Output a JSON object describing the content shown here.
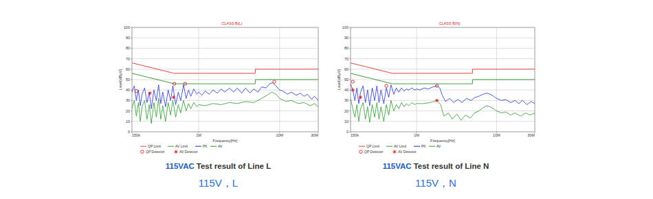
{
  "chart_data": [
    {
      "type": "line",
      "title": "CLASS B(L)",
      "x_label": "Frequency[Hz]",
      "y_label": "Level[dBµV]",
      "log": "x",
      "grid": true,
      "legend": "bottom",
      "xlim": [
        150000,
        30000000
      ],
      "xticks": [
        {
          "value": 150000,
          "label": "150k"
        },
        {
          "value": 1000000,
          "label": "1M"
        },
        {
          "value": 10000000,
          "label": "10M"
        },
        {
          "value": 30000000,
          "label": "30M"
        }
      ],
      "ylim": [
        0,
        100
      ],
      "yticks": [
        0,
        10,
        20,
        30,
        40,
        50,
        60,
        70,
        80,
        90,
        100
      ],
      "series": [
        {
          "name": "QP Limit",
          "color": "#e8463c",
          "type": "line",
          "x": [
            150000,
            500000,
            500000,
            5000000,
            5000000,
            30000000
          ],
          "values": [
            66,
            56,
            56,
            56,
            60,
            60
          ]
        },
        {
          "name": "AV Limit",
          "color": "#3a9e3a",
          "type": "line",
          "x": [
            150000,
            500000,
            500000,
            5000000,
            5000000,
            30000000
          ],
          "values": [
            56,
            46,
            46,
            46,
            50,
            50
          ]
        },
        {
          "name": "PK",
          "color": "#1f2fe0",
          "type": "line",
          "x": [
            150000,
            160000,
            170000,
            180000,
            190000,
            200000,
            215000,
            230000,
            245000,
            260000,
            280000,
            300000,
            320000,
            340000,
            360000,
            390000,
            420000,
            450000,
            480000,
            520000,
            560000,
            600000,
            650000,
            700000,
            750000,
            800000,
            870000,
            950000,
            1000000,
            1100000,
            1200000,
            1350000,
            1500000,
            1700000,
            1900000,
            2100000,
            2400000,
            2700000,
            3000000,
            3400000,
            3800000,
            4300000,
            4800000,
            5400000,
            6000000,
            6800000,
            7500000,
            8200000,
            9000000,
            10000000,
            11000000,
            12500000,
            14000000,
            16000000,
            18000000,
            20000000,
            22000000,
            25000000,
            27000000,
            30000000
          ],
          "values": [
            38,
            44,
            30,
            40,
            25,
            36,
            42,
            28,
            38,
            22,
            40,
            30,
            45,
            27,
            38,
            24,
            40,
            30,
            44,
            26,
            38,
            30,
            45,
            32,
            40,
            34,
            41,
            36,
            38,
            35,
            39,
            36,
            40,
            37,
            41,
            38,
            42,
            38,
            42,
            37,
            42,
            37,
            41,
            38,
            43,
            42,
            46,
            47,
            44,
            40,
            39,
            36,
            38,
            35,
            37,
            34,
            36,
            31,
            34,
            30
          ]
        },
        {
          "name": "AV",
          "color": "#2a9a2a",
          "type": "line",
          "x": [
            150000,
            160000,
            170000,
            180000,
            190000,
            200000,
            215000,
            230000,
            245000,
            260000,
            280000,
            300000,
            320000,
            340000,
            360000,
            390000,
            420000,
            450000,
            480000,
            520000,
            560000,
            600000,
            650000,
            700000,
            750000,
            800000,
            870000,
            950000,
            1000000,
            1200000,
            1500000,
            1900000,
            2400000,
            3000000,
            3800000,
            4800000,
            6000000,
            7000000,
            8000000,
            9000000,
            10000000,
            12000000,
            14000000,
            17000000,
            20000000,
            24000000,
            27000000,
            30000000
          ],
          "values": [
            22,
            30,
            15,
            28,
            10,
            24,
            30,
            12,
            26,
            8,
            28,
            14,
            32,
            12,
            25,
            10,
            28,
            16,
            30,
            14,
            26,
            18,
            30,
            20,
            27,
            22,
            28,
            24,
            26,
            25,
            27,
            26,
            28,
            27,
            29,
            28,
            32,
            35,
            38,
            36,
            32,
            29,
            30,
            27,
            28,
            25,
            27,
            24
          ]
        },
        {
          "name": "QP Detector",
          "color": "#e02020",
          "type": "scatter",
          "marker": "circle",
          "x": [
            170000,
            500000,
            680000,
            8600000
          ],
          "values": [
            39,
            46,
            46,
            48
          ]
        },
        {
          "name": "AV Detector",
          "color": "#e02020",
          "type": "scatter",
          "marker": "star",
          "x": [
            250000,
            490000
          ],
          "values": [
            37,
            33
          ]
        }
      ],
      "caption_highlight": "115VAC",
      "caption": "Test result of Line L",
      "subcaption": "115V，L"
    },
    {
      "type": "line",
      "title": "CLASS B(N)",
      "x_label": "Frequency[Hz]",
      "y_label": "Level[dBµV]",
      "log": "x",
      "grid": true,
      "legend": "bottom",
      "xlim": [
        150000,
        30000000
      ],
      "xticks": [
        {
          "value": 150000,
          "label": "150k"
        },
        {
          "value": 1000000,
          "label": "1M"
        },
        {
          "value": 10000000,
          "label": "10M"
        },
        {
          "value": 30000000,
          "label": "30M"
        }
      ],
      "ylim": [
        0,
        100
      ],
      "yticks": [
        0,
        10,
        20,
        30,
        40,
        50,
        60,
        70,
        80,
        90,
        100
      ],
      "series": [
        {
          "name": "QP Limit",
          "color": "#e8463c",
          "type": "line",
          "x": [
            150000,
            500000,
            500000,
            5000000,
            5000000,
            30000000
          ],
          "values": [
            66,
            56,
            56,
            56,
            60,
            60
          ]
        },
        {
          "name": "AV Limit",
          "color": "#3a9e3a",
          "type": "line",
          "x": [
            150000,
            500000,
            500000,
            5000000,
            5000000,
            30000000
          ],
          "values": [
            56,
            46,
            46,
            46,
            50,
            50
          ]
        },
        {
          "name": "PK",
          "color": "#1f2fe0",
          "type": "line",
          "x": [
            150000,
            160000,
            170000,
            180000,
            190000,
            200000,
            215000,
            230000,
            245000,
            260000,
            280000,
            300000,
            320000,
            340000,
            360000,
            390000,
            420000,
            450000,
            480000,
            520000,
            560000,
            600000,
            650000,
            700000,
            750000,
            800000,
            870000,
            950000,
            1000000,
            1100000,
            1250000,
            1400000,
            1600000,
            1800000,
            1950000,
            2100000,
            2300000,
            2600000,
            2900000,
            3300000,
            3700000,
            4200000,
            4800000,
            5400000,
            6000000,
            6800000,
            7500000,
            8300000,
            9200000,
            10000000,
            11500000,
            13000000,
            15000000,
            17000000,
            19000000,
            21000000,
            24000000,
            27000000,
            30000000
          ],
          "values": [
            46,
            40,
            30,
            42,
            27,
            38,
            44,
            28,
            40,
            25,
            42,
            30,
            44,
            28,
            40,
            27,
            42,
            33,
            45,
            36,
            42,
            38,
            42,
            39,
            41,
            40,
            42,
            40,
            41,
            40,
            42,
            41,
            43,
            44,
            42,
            35,
            29,
            32,
            28,
            31,
            28,
            32,
            30,
            33,
            34,
            36,
            37,
            36,
            34,
            32,
            30,
            31,
            28,
            30,
            27,
            30,
            26,
            29,
            27
          ]
        },
        {
          "name": "AV",
          "color": "#2a9a2a",
          "type": "line",
          "x": [
            150000,
            160000,
            170000,
            180000,
            190000,
            200000,
            215000,
            230000,
            245000,
            260000,
            280000,
            300000,
            320000,
            340000,
            360000,
            390000,
            420000,
            450000,
            480000,
            520000,
            560000,
            600000,
            650000,
            700000,
            750000,
            800000,
            870000,
            950000,
            1000000,
            1200000,
            1500000,
            1800000,
            2000000,
            2200000,
            2500000,
            2800000,
            3200000,
            3600000,
            4100000,
            4700000,
            5300000,
            6000000,
            6800000,
            7500000,
            8300000,
            9200000,
            10000000,
            11500000,
            13000000,
            15000000,
            17000000,
            20000000,
            23000000,
            26000000,
            30000000
          ],
          "values": [
            32,
            22,
            14,
            26,
            10,
            22,
            28,
            12,
            24,
            9,
            26,
            14,
            28,
            12,
            24,
            10,
            26,
            16,
            30,
            20,
            26,
            22,
            28,
            24,
            27,
            25,
            28,
            26,
            27,
            27,
            28,
            30,
            26,
            15,
            18,
            12,
            17,
            11,
            16,
            13,
            18,
            20,
            23,
            25,
            24,
            22,
            20,
            18,
            19,
            16,
            18,
            15,
            18,
            16,
            18
          ]
        },
        {
          "name": "QP Detector",
          "color": "#e02020",
          "type": "scatter",
          "marker": "circle",
          "x": [
            160000,
            420000,
            1800000
          ],
          "values": [
            48,
            44,
            44
          ]
        },
        {
          "name": "AV Detector",
          "color": "#e02020",
          "type": "scatter",
          "marker": "star",
          "x": [
            160000,
            200000,
            1800000
          ],
          "values": [
            40,
            33,
            30
          ]
        }
      ],
      "caption_highlight": "115VAC",
      "caption": "Test result of Line N",
      "subcaption": "115V，N"
    }
  ]
}
